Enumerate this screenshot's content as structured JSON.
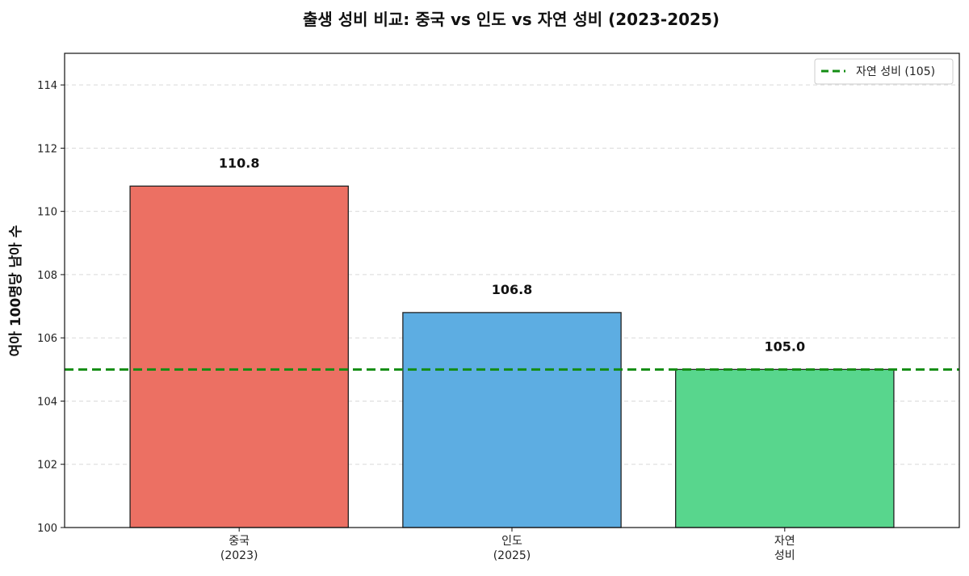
{
  "chart_data": {
    "type": "bar",
    "title": "출생 성비 비교: 중국 vs 인도 vs 자연 성비 (2023-2025)",
    "xlabel": "",
    "ylabel": "여아 100명당 남아 수",
    "ylim": [
      100,
      115
    ],
    "yticks": [
      100,
      102,
      104,
      106,
      108,
      110,
      112,
      114
    ],
    "categories": [
      [
        "중국",
        "(2023)"
      ],
      [
        "인도",
        "(2025)"
      ],
      [
        "자연",
        "성비"
      ]
    ],
    "values": [
      110.8,
      106.8,
      105.0
    ],
    "value_labels": [
      "110.8",
      "106.8",
      "105.0"
    ],
    "colors": [
      "#ec7063",
      "#5dade2",
      "#58d68d"
    ],
    "reference_line": {
      "value": 105,
      "label": "자연 성비 (105)",
      "color": "#138d13",
      "style": "dashed"
    },
    "grid": true,
    "legend_position": "top-right"
  }
}
